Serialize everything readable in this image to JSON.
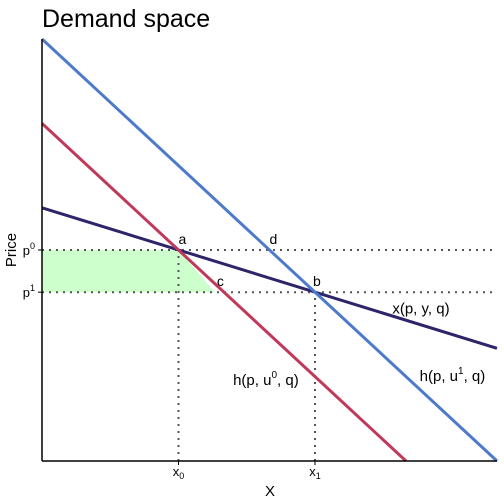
{
  "chart_data": {
    "type": "line",
    "title": "Demand space",
    "xlabel": "X",
    "ylabel": "Price",
    "xlim": [
      0,
      10
    ],
    "ylim": [
      0,
      10
    ],
    "grid": false,
    "legend": "none",
    "x_ticks": [
      {
        "value": 3,
        "base": "x",
        "sub": "0"
      },
      {
        "value": 6,
        "base": "x",
        "sub": "1"
      }
    ],
    "y_ticks": [
      {
        "value": 5,
        "base": "p",
        "sup": "0"
      },
      {
        "value": 4,
        "base": "p",
        "sup": "1"
      }
    ],
    "shaded_region": {
      "color": "#ccffcc",
      "points": [
        [
          0,
          5
        ],
        [
          3,
          5
        ],
        [
          3.8,
          4
        ],
        [
          0,
          4
        ]
      ]
    },
    "series": [
      {
        "label_base": "x(p, y, q)",
        "label_sup": "",
        "color": "#2e2469",
        "x": [
          0,
          10
        ],
        "y": [
          6,
          2.67
        ],
        "label_at": [
          7.7,
          3.5
        ]
      },
      {
        "label_base": "h(p, u",
        "label_sup": "0",
        "label_tail": ", q)",
        "color": "#c0395a",
        "x": [
          0,
          8
        ],
        "y": [
          8,
          0
        ],
        "label_at": [
          4.2,
          1.8
        ]
      },
      {
        "label_base": "h(p, u",
        "label_sup": "1",
        "label_tail": ", q)",
        "color": "#4e7acb",
        "x": [
          0,
          10
        ],
        "y": [
          10,
          0
        ],
        "label_at": [
          8.3,
          1.9
        ]
      }
    ],
    "guides": [
      {
        "x": [
          0,
          10
        ],
        "y": [
          5,
          5
        ]
      },
      {
        "x": [
          0,
          10
        ],
        "y": [
          4,
          4
        ]
      },
      {
        "x": [
          3,
          3
        ],
        "y": [
          0,
          5
        ]
      },
      {
        "x": [
          6,
          6
        ],
        "y": [
          0,
          4
        ]
      }
    ],
    "points": [
      {
        "label": "a",
        "x": 3,
        "y": 5,
        "dx": 0,
        "dy": -6
      },
      {
        "label": "d",
        "x": 5,
        "y": 5,
        "dx": 0,
        "dy": -6
      },
      {
        "label": "c",
        "x": 3.8,
        "y": 4,
        "dx": 2,
        "dy": -6
      },
      {
        "label": "b",
        "x": 6,
        "y": 4,
        "dx": -2,
        "dy": -6
      }
    ],
    "colors": {
      "axis": "#000000",
      "guide": "#555555"
    }
  }
}
